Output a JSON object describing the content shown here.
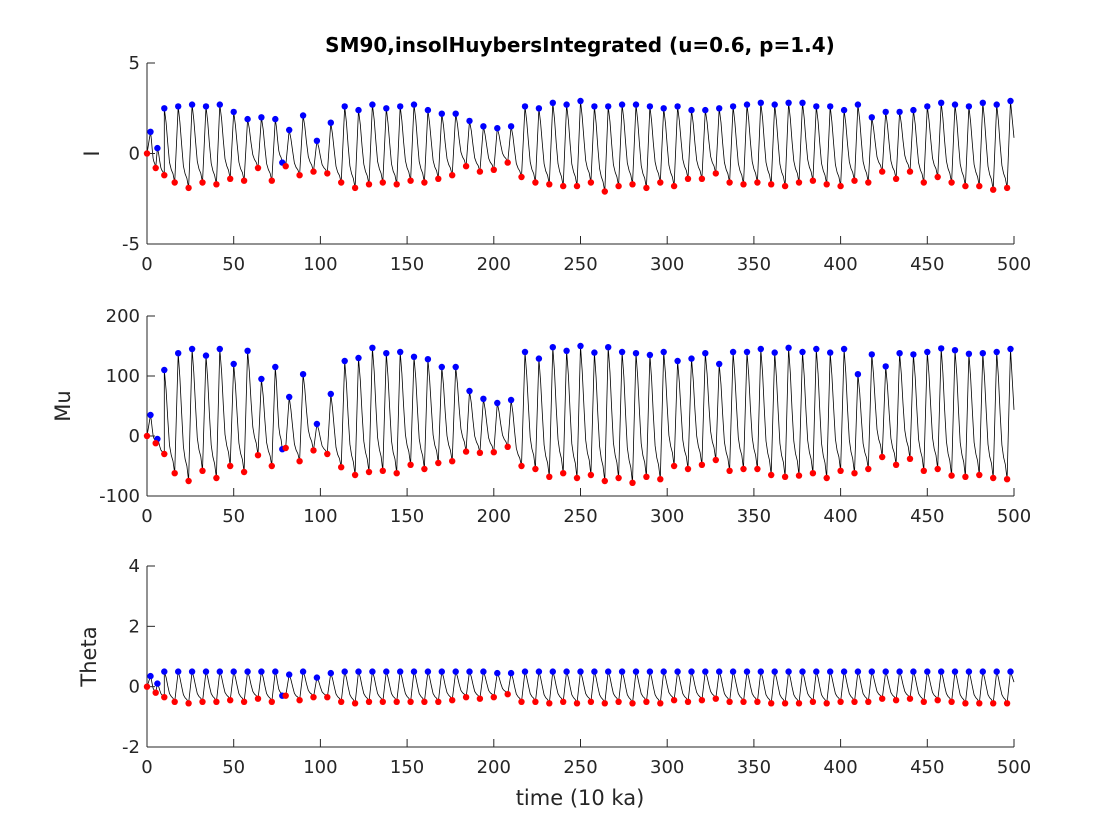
{
  "figure": {
    "title": "SM90,insolHuybersIntegrated (u=0.6, p=1.4)",
    "xlabel": "time (10 ka)"
  },
  "colors": {
    "line": "#000000",
    "max_marker": "#0000ff",
    "min_marker": "#ff0000",
    "axes": "#262626",
    "background": "#ffffff"
  },
  "chart_data": [
    {
      "type": "line",
      "ylabel": "I",
      "xlim": [
        0,
        500
      ],
      "ylim": [
        -5,
        5
      ],
      "xticks": [
        0,
        50,
        100,
        150,
        200,
        250,
        300,
        350,
        400,
        450,
        500
      ],
      "yticks": [
        -5,
        0,
        5
      ],
      "grid": false,
      "legend": "none",
      "series": [
        {
          "x": [
            2,
            6,
            10,
            18,
            26,
            34,
            42,
            50,
            58,
            66,
            74,
            78,
            82,
            90,
            98,
            106,
            114,
            122,
            130,
            138,
            146,
            154,
            162,
            170,
            178,
            186,
            194,
            202,
            210,
            218,
            226,
            234,
            242,
            250,
            258,
            266,
            274,
            282,
            290,
            298,
            306,
            314,
            322,
            330,
            338,
            346,
            354,
            362,
            370,
            378,
            386,
            394,
            402,
            410,
            418,
            426,
            434,
            442,
            450,
            458,
            466,
            474,
            482,
            490,
            498
          ],
          "values": [
            1.2,
            0.3,
            2.5,
            2.6,
            2.7,
            2.6,
            2.7,
            2.3,
            1.9,
            2.0,
            1.9,
            -0.5,
            1.3,
            2.1,
            0.7,
            1.7,
            2.6,
            2.4,
            2.7,
            2.5,
            2.6,
            2.7,
            2.4,
            2.2,
            2.2,
            1.8,
            1.5,
            1.4,
            1.5,
            2.6,
            2.5,
            2.8,
            2.7,
            2.9,
            2.6,
            2.6,
            2.7,
            2.7,
            2.6,
            2.5,
            2.6,
            2.4,
            2.4,
            2.5,
            2.6,
            2.7,
            2.8,
            2.7,
            2.8,
            2.8,
            2.6,
            2.6,
            2.4,
            2.7,
            2.0,
            2.3,
            2.3,
            2.4,
            2.6,
            2.8,
            2.7,
            2.6,
            2.8,
            2.7,
            2.9
          ]
        },
        {
          "x": [
            0,
            5,
            10,
            16,
            24,
            32,
            40,
            48,
            56,
            64,
            72,
            80,
            88,
            96,
            104,
            112,
            120,
            128,
            136,
            144,
            152,
            160,
            168,
            176,
            184,
            192,
            200,
            208,
            216,
            224,
            232,
            240,
            248,
            256,
            264,
            272,
            280,
            288,
            296,
            304,
            312,
            320,
            328,
            336,
            344,
            352,
            360,
            368,
            376,
            384,
            392,
            400,
            408,
            416,
            424,
            432,
            440,
            448,
            456,
            464,
            472,
            480,
            488,
            496
          ],
          "values": [
            0.0,
            -0.8,
            -1.2,
            -1.6,
            -1.9,
            -1.6,
            -1.7,
            -1.4,
            -1.5,
            -0.8,
            -1.5,
            -0.7,
            -1.2,
            -1.0,
            -1.1,
            -1.6,
            -1.9,
            -1.7,
            -1.6,
            -1.7,
            -1.5,
            -1.6,
            -1.4,
            -1.2,
            -0.7,
            -1.0,
            -0.9,
            -0.5,
            -1.3,
            -1.6,
            -1.7,
            -1.8,
            -1.8,
            -1.6,
            -2.1,
            -1.8,
            -1.7,
            -1.9,
            -1.6,
            -1.8,
            -1.4,
            -1.4,
            -1.1,
            -1.6,
            -1.7,
            -1.6,
            -1.7,
            -1.8,
            -1.6,
            -1.5,
            -1.7,
            -1.8,
            -1.5,
            -1.6,
            -1.0,
            -1.4,
            -1.0,
            -1.6,
            -1.3,
            -1.6,
            -1.8,
            -1.8,
            -2.0,
            -1.9
          ]
        }
      ]
    },
    {
      "type": "line",
      "ylabel": "Mu",
      "xlim": [
        0,
        500
      ],
      "ylim": [
        -100,
        200
      ],
      "xticks": [
        0,
        50,
        100,
        150,
        200,
        250,
        300,
        350,
        400,
        450,
        500
      ],
      "yticks": [
        -100,
        0,
        100,
        200
      ],
      "grid": false,
      "legend": "none",
      "series": [
        {
          "x": [
            2,
            6,
            10,
            18,
            26,
            34,
            42,
            50,
            58,
            66,
            74,
            78,
            82,
            90,
            98,
            106,
            114,
            122,
            130,
            138,
            146,
            154,
            162,
            170,
            178,
            186,
            194,
            202,
            210,
            218,
            226,
            234,
            242,
            250,
            258,
            266,
            274,
            282,
            290,
            298,
            306,
            314,
            322,
            330,
            338,
            346,
            354,
            362,
            370,
            378,
            386,
            394,
            402,
            410,
            418,
            426,
            434,
            442,
            450,
            458,
            466,
            474,
            482,
            490,
            498
          ],
          "values": [
            35,
            -5,
            110,
            138,
            145,
            134,
            145,
            120,
            142,
            95,
            115,
            -22,
            65,
            103,
            20,
            70,
            125,
            130,
            147,
            138,
            140,
            132,
            128,
            115,
            115,
            75,
            62,
            55,
            60,
            140,
            129,
            148,
            142,
            150,
            139,
            148,
            140,
            138,
            135,
            140,
            125,
            129,
            138,
            120,
            140,
            140,
            145,
            139,
            147,
            140,
            145,
            139,
            145,
            103,
            136,
            116,
            138,
            136,
            140,
            146,
            143,
            137,
            138,
            140,
            145
          ]
        },
        {
          "x": [
            0,
            5,
            10,
            16,
            24,
            32,
            40,
            48,
            56,
            64,
            72,
            80,
            88,
            96,
            104,
            112,
            120,
            128,
            136,
            144,
            152,
            160,
            168,
            176,
            184,
            192,
            200,
            208,
            216,
            224,
            232,
            240,
            248,
            256,
            264,
            272,
            280,
            288,
            296,
            304,
            312,
            320,
            328,
            336,
            344,
            352,
            360,
            368,
            376,
            384,
            392,
            400,
            408,
            416,
            424,
            432,
            440,
            448,
            456,
            464,
            472,
            480,
            488,
            496
          ],
          "values": [
            0,
            -12,
            -30,
            -62,
            -75,
            -58,
            -70,
            -50,
            -60,
            -32,
            -50,
            -20,
            -42,
            -24,
            -30,
            -52,
            -65,
            -60,
            -58,
            -62,
            -48,
            -55,
            -45,
            -42,
            -26,
            -28,
            -27,
            -18,
            -50,
            -55,
            -68,
            -62,
            -70,
            -65,
            -75,
            -70,
            -78,
            -68,
            -72,
            -50,
            -55,
            -48,
            -40,
            -58,
            -55,
            -55,
            -65,
            -68,
            -66,
            -62,
            -70,
            -58,
            -62,
            -55,
            -35,
            -48,
            -38,
            -58,
            -55,
            -66,
            -68,
            -65,
            -70,
            -72
          ]
        }
      ]
    },
    {
      "type": "line",
      "ylabel": "Theta",
      "xlim": [
        0,
        500
      ],
      "ylim": [
        -2,
        4
      ],
      "xticks": [
        0,
        50,
        100,
        150,
        200,
        250,
        300,
        350,
        400,
        450,
        500
      ],
      "yticks": [
        -2,
        0,
        2,
        4
      ],
      "grid": false,
      "legend": "none",
      "series": [
        {
          "x": [
            2,
            6,
            10,
            18,
            26,
            34,
            42,
            50,
            58,
            66,
            74,
            78,
            82,
            90,
            98,
            106,
            114,
            122,
            130,
            138,
            146,
            154,
            162,
            170,
            178,
            186,
            194,
            202,
            210,
            218,
            226,
            234,
            242,
            250,
            258,
            266,
            274,
            282,
            290,
            298,
            306,
            314,
            322,
            330,
            338,
            346,
            354,
            362,
            370,
            378,
            386,
            394,
            402,
            410,
            418,
            426,
            434,
            442,
            450,
            458,
            466,
            474,
            482,
            490,
            498
          ],
          "values": [
            0.35,
            0.1,
            0.5,
            0.5,
            0.5,
            0.5,
            0.5,
            0.5,
            0.5,
            0.5,
            0.5,
            -0.3,
            0.4,
            0.5,
            0.3,
            0.45,
            0.5,
            0.5,
            0.5,
            0.5,
            0.5,
            0.5,
            0.5,
            0.5,
            0.5,
            0.5,
            0.5,
            0.45,
            0.45,
            0.5,
            0.5,
            0.5,
            0.5,
            0.5,
            0.5,
            0.5,
            0.5,
            0.5,
            0.5,
            0.5,
            0.5,
            0.5,
            0.5,
            0.5,
            0.5,
            0.5,
            0.5,
            0.5,
            0.5,
            0.5,
            0.5,
            0.5,
            0.5,
            0.5,
            0.5,
            0.5,
            0.5,
            0.5,
            0.5,
            0.5,
            0.5,
            0.5,
            0.5,
            0.5,
            0.5
          ]
        },
        {
          "x": [
            0,
            5,
            10,
            16,
            24,
            32,
            40,
            48,
            56,
            64,
            72,
            80,
            88,
            96,
            104,
            112,
            120,
            128,
            136,
            144,
            152,
            160,
            168,
            176,
            184,
            192,
            200,
            208,
            216,
            224,
            232,
            240,
            248,
            256,
            264,
            272,
            280,
            288,
            296,
            304,
            312,
            320,
            328,
            336,
            344,
            352,
            360,
            368,
            376,
            384,
            392,
            400,
            408,
            416,
            424,
            432,
            440,
            448,
            456,
            464,
            472,
            480,
            488,
            496
          ],
          "values": [
            0.0,
            -0.2,
            -0.35,
            -0.5,
            -0.55,
            -0.5,
            -0.5,
            -0.45,
            -0.5,
            -0.4,
            -0.5,
            -0.3,
            -0.45,
            -0.35,
            -0.35,
            -0.5,
            -0.55,
            -0.5,
            -0.5,
            -0.5,
            -0.5,
            -0.5,
            -0.5,
            -0.45,
            -0.35,
            -0.4,
            -0.35,
            -0.25,
            -0.5,
            -0.5,
            -0.55,
            -0.5,
            -0.55,
            -0.5,
            -0.55,
            -0.5,
            -0.55,
            -0.5,
            -0.55,
            -0.45,
            -0.5,
            -0.45,
            -0.4,
            -0.5,
            -0.5,
            -0.5,
            -0.55,
            -0.55,
            -0.55,
            -0.5,
            -0.55,
            -0.5,
            -0.5,
            -0.5,
            -0.4,
            -0.45,
            -0.4,
            -0.5,
            -0.45,
            -0.5,
            -0.55,
            -0.55,
            -0.55,
            -0.55
          ]
        }
      ]
    }
  ]
}
